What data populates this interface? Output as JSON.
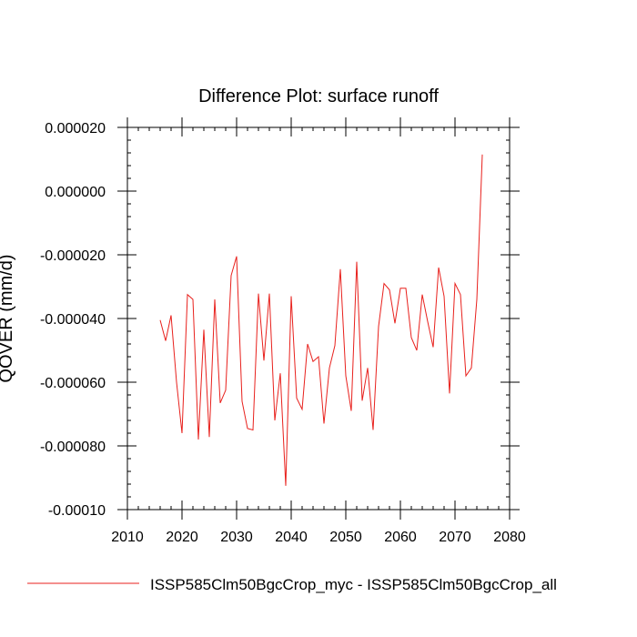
{
  "chart_data": {
    "type": "line",
    "title": "Difference Plot: surface runoff",
    "xlabel": "",
    "ylabel": "QOVER  (mm/d)",
    "xlim": [
      2010,
      2080
    ],
    "ylim": [
      -0.0001,
      2e-05
    ],
    "x_ticks": [
      2010,
      2020,
      2030,
      2040,
      2050,
      2060,
      2070,
      2080
    ],
    "x_tick_labels": [
      "2010",
      "2020",
      "2030",
      "2040",
      "2050",
      "2060",
      "2070",
      "2080"
    ],
    "y_ticks": [
      2e-05,
      0.0,
      -2e-05,
      -4e-05,
      -6e-05,
      -8e-05,
      -0.0001
    ],
    "y_tick_labels": [
      "0.000020",
      "0.000000",
      "-0.000020",
      "-0.000040",
      "-0.000060",
      "-0.000080",
      "-0.00010"
    ],
    "grid": false,
    "legend_position": "bottom",
    "series": [
      {
        "name": "ISSP585Clm50BgcCrop_myc - ISSP585Clm50BgcCrop_all",
        "color": "#e8201c",
        "x": [
          2016,
          2017,
          2018,
          2019,
          2020,
          2021,
          2022,
          2023,
          2024,
          2025,
          2026,
          2027,
          2028,
          2029,
          2030,
          2031,
          2032,
          2033,
          2034,
          2035,
          2036,
          2037,
          2038,
          2039,
          2040,
          2041,
          2042,
          2043,
          2044,
          2045,
          2046,
          2047,
          2048,
          2049,
          2050,
          2051,
          2052,
          2053,
          2054,
          2055,
          2056,
          2057,
          2058,
          2059,
          2060,
          2061,
          2062,
          2063,
          2064,
          2065,
          2066,
          2067,
          2068,
          2069,
          2070,
          2071,
          2072,
          2073,
          2074,
          2075
        ],
        "values": [
          -4.05e-05,
          -4.7e-05,
          -3.9e-05,
          -6e-05,
          -7.6e-05,
          -3.25e-05,
          -3.4e-05,
          -7.8e-05,
          -4.35e-05,
          -7.72e-05,
          -3.4e-05,
          -6.65e-05,
          -6.25e-05,
          -2.65e-05,
          -2.05e-05,
          -6.6e-05,
          -7.45e-05,
          -7.5e-05,
          -3.22e-05,
          -5.32e-05,
          -3.22e-05,
          -7.2e-05,
          -5.72e-05,
          -9.25e-05,
          -3.3e-05,
          -6.5e-05,
          -6.85e-05,
          -4.8e-05,
          -5.35e-05,
          -5.2e-05,
          -7.3e-05,
          -5.55e-05,
          -4.85e-05,
          -2.45e-05,
          -5.8e-05,
          -6.9e-05,
          -2.22e-05,
          -6.58e-05,
          -5.55e-05,
          -7.5e-05,
          -4.25e-05,
          -2.9e-05,
          -3.1e-05,
          -4.15e-05,
          -3.05e-05,
          -3.05e-05,
          -4.6e-05,
          -5e-05,
          -3.25e-05,
          -4.1e-05,
          -4.9e-05,
          -2.4e-05,
          -3.3e-05,
          -6.35e-05,
          -2.9e-05,
          -3.25e-05,
          -5.8e-05,
          -5.55e-05,
          -3.4e-05,
          1.15e-05
        ]
      }
    ]
  }
}
